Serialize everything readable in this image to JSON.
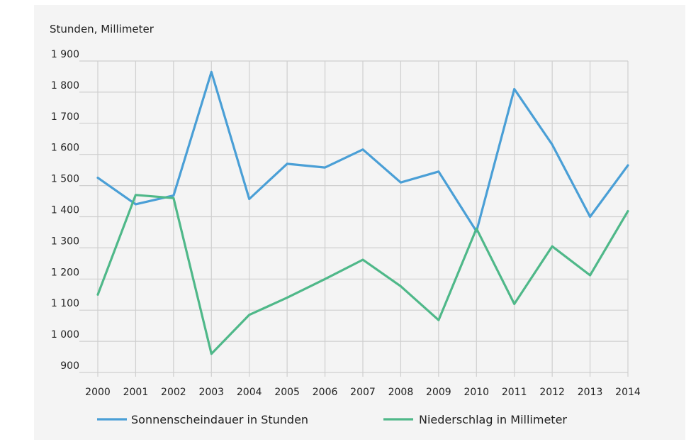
{
  "chart_data": {
    "type": "line",
    "ylabel": "Stunden, Millimeter",
    "categories": [
      "2000",
      "2001",
      "2002",
      "2003",
      "2004",
      "2005",
      "2006",
      "2007",
      "2008",
      "2009",
      "2010",
      "2011",
      "2012",
      "2013",
      "2014"
    ],
    "y_ticks": [
      "900",
      "1 000",
      "1 100",
      "1 200",
      "1 300",
      "1 400",
      "1 500",
      "1 600",
      "1 700",
      "1 800",
      "1 900"
    ],
    "ylim": [
      900,
      1900
    ],
    "grid": true,
    "legend_position": "bottom",
    "series": [
      {
        "name": "Sonnenscheindauer in Stunden",
        "color": "#4a9fd6",
        "values": [
          1525,
          1440,
          1468,
          1865,
          1457,
          1570,
          1558,
          1616,
          1510,
          1545,
          1353,
          1810,
          1632,
          1400,
          1565
        ]
      },
      {
        "name": "Niederschlag in Millimeter",
        "color": "#4fb889",
        "values": [
          1150,
          1470,
          1460,
          960,
          1085,
          1140,
          1200,
          1262,
          1177,
          1068,
          1362,
          1120,
          1305,
          1212,
          1418
        ]
      }
    ]
  }
}
